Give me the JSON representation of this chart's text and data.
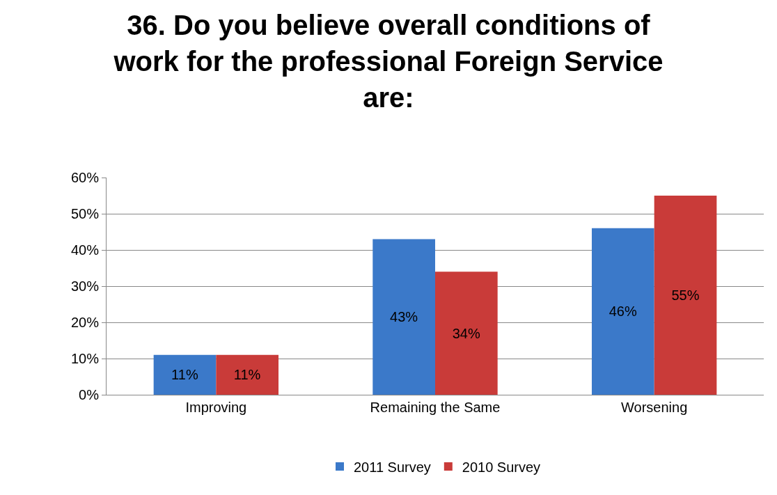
{
  "chart_data": {
    "type": "bar",
    "title": "36. Do you believe overall conditions of work for the professional Foreign Service are:",
    "categories": [
      "Improving",
      "Remaining the Same",
      "Worsening"
    ],
    "series": [
      {
        "name": "2011 Survey",
        "color": "#3b79c9",
        "values": [
          11,
          43,
          46
        ],
        "value_labels": [
          "11%",
          "43%",
          "46%"
        ]
      },
      {
        "name": "2010 Survey",
        "color": "#c93b39",
        "values": [
          11,
          34,
          55
        ],
        "value_labels": [
          "11%",
          "34%",
          "55%"
        ]
      }
    ],
    "ylim": [
      0,
      60
    ],
    "yticks": [
      {
        "value": 0,
        "label": "0%"
      },
      {
        "value": 10,
        "label": "10%"
      },
      {
        "value": 20,
        "label": "20%"
      },
      {
        "value": 30,
        "label": "30%"
      },
      {
        "value": 40,
        "label": "40%"
      },
      {
        "value": 50,
        "label": "50%"
      },
      {
        "value": 60,
        "label": "60%"
      }
    ],
    "grid": "y",
    "legend": "bottom"
  }
}
